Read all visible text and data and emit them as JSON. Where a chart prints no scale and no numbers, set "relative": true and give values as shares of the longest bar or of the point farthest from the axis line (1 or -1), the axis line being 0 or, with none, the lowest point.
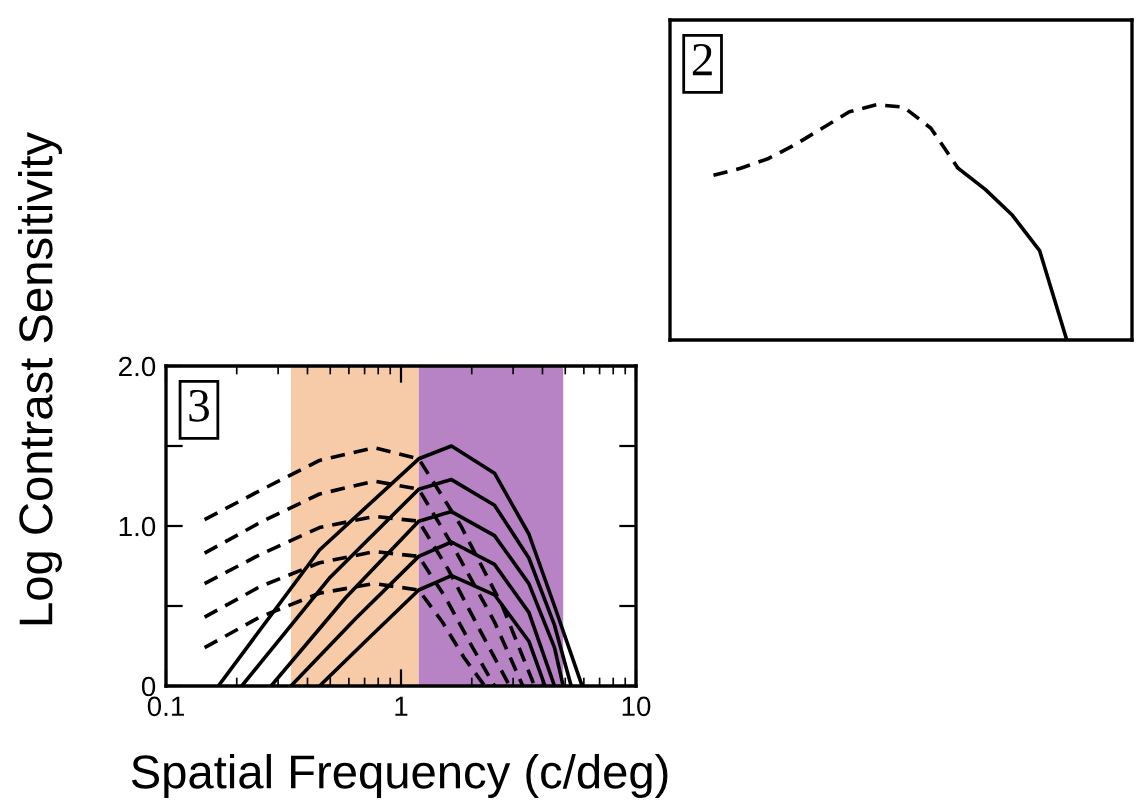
{
  "chart_data": [
    {
      "type": "line",
      "relative": true,
      "grid": false,
      "legend": false,
      "categories": [
        null,
        null,
        null,
        null,
        null,
        null,
        null,
        null,
        null,
        null,
        null,
        null,
        null,
        null
      ],
      "annotations": [
        "2"
      ],
      "series": [
        {
          "color": "#000000",
          "line_style": "dashed",
          "values": [
            0.7,
            0.73,
            0.77,
            0.83,
            0.9,
            0.97,
            1,
            0.99,
            0.9,
            0.73,
            null,
            null,
            null,
            null
          ]
        },
        {
          "color": "#000000",
          "line_style": "solid",
          "values": [
            null,
            null,
            null,
            null,
            null,
            null,
            null,
            null,
            null,
            0.73,
            0.64,
            0.53,
            0.38,
            0
          ]
        }
      ]
    },
    {
      "type": "line",
      "log": "x",
      "xlim": [
        0.1,
        10
      ],
      "ylim": [
        0,
        2
      ],
      "grid": false,
      "legend": false,
      "xlabel": "Spatial Frequency (c/deg)",
      "ylabel": "Log Contrast Sensitivity",
      "xticks": [
        0.1,
        1,
        10
      ],
      "yticks": [
        {
          "value": 0,
          "label": "0"
        },
        {
          "value": 0.5,
          "label": null
        },
        {
          "value": 1,
          "label": "1.0"
        },
        {
          "value": 1.5,
          "label": null
        },
        {
          "value": 2,
          "label": "2.0"
        }
      ],
      "annotations": [
        "3"
      ],
      "bands": [
        {
          "axis": "x",
          "from": 0.34,
          "to": 1.19,
          "color": "#f8cba8"
        },
        {
          "axis": "x",
          "from": 1.19,
          "to": 4.9,
          "color": "#b883c4"
        }
      ],
      "series": [
        {
          "color": "#000000",
          "line_style": "dashed",
          "x": [
            0.146,
            0.25,
            0.45,
            0.77,
            1.19,
            1.8,
            2.7,
            3.7
          ],
          "values": [
            1.04,
            1.22,
            1.41,
            1.49,
            1.42,
            1.0,
            0.5,
            0
          ]
        },
        {
          "color": "#000000",
          "line_style": "dashed",
          "x": [
            0.146,
            0.25,
            0.45,
            0.77,
            1.19,
            1.7,
            2.5,
            3.3
          ],
          "values": [
            0.83,
            1.02,
            1.2,
            1.28,
            1.23,
            0.85,
            0.4,
            0
          ]
        },
        {
          "color": "#000000",
          "line_style": "dashed",
          "x": [
            0.146,
            0.25,
            0.45,
            0.77,
            1.19,
            1.6,
            2.2,
            2.9
          ],
          "values": [
            0.64,
            0.82,
            0.99,
            1.06,
            1.03,
            0.72,
            0.33,
            0
          ]
        },
        {
          "color": "#000000",
          "line_style": "dashed",
          "x": [
            0.146,
            0.25,
            0.45,
            0.77,
            1.19,
            1.55,
            2.0,
            2.5
          ],
          "values": [
            0.43,
            0.62,
            0.77,
            0.84,
            0.81,
            0.55,
            0.25,
            0
          ]
        },
        {
          "color": "#000000",
          "line_style": "dashed",
          "x": [
            0.146,
            0.25,
            0.45,
            0.77,
            1.19,
            1.5,
            1.85,
            2.27
          ],
          "values": [
            0.24,
            0.43,
            0.58,
            0.64,
            0.6,
            0.4,
            0.18,
            0
          ]
        },
        {
          "color": "#000000",
          "line_style": "solid",
          "x": [
            0.167,
            0.45,
            1.19,
            1.64,
            2.5,
            3.5,
            4.5,
            5.9
          ],
          "values": [
            0,
            0.85,
            1.42,
            1.5,
            1.33,
            0.95,
            0.5,
            0
          ]
        },
        {
          "color": "#000000",
          "line_style": "solid",
          "x": [
            0.21,
            0.5,
            1.19,
            1.64,
            2.5,
            3.5,
            4.5,
            5.3
          ],
          "values": [
            0,
            0.68,
            1.23,
            1.29,
            1.13,
            0.8,
            0.38,
            0
          ]
        },
        {
          "color": "#000000",
          "line_style": "solid",
          "x": [
            0.28,
            0.58,
            1.19,
            1.64,
            2.5,
            3.5,
            4.5,
            4.9
          ],
          "values": [
            0,
            0.55,
            1.03,
            1.09,
            0.94,
            0.64,
            0.24,
            0
          ]
        },
        {
          "color": "#000000",
          "line_style": "solid",
          "x": [
            0.34,
            0.64,
            1.19,
            1.64,
            2.5,
            3.5,
            4.5
          ],
          "values": [
            0,
            0.42,
            0.81,
            0.9,
            0.76,
            0.46,
            0
          ]
        },
        {
          "color": "#000000",
          "line_style": "solid",
          "x": [
            0.45,
            0.73,
            1.19,
            1.64,
            2.5,
            3.5,
            4.1
          ],
          "values": [
            0,
            0.3,
            0.6,
            0.69,
            0.57,
            0.28,
            0
          ]
        }
      ]
    }
  ]
}
